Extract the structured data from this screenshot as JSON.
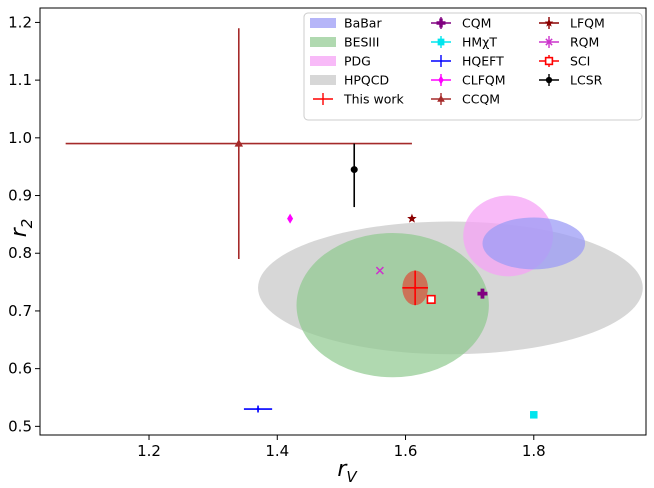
{
  "chart_data": {
    "type": "scatter",
    "xlabel": "r",
    "xlabel_sub": "V",
    "ylabel": "r",
    "ylabel_sub": "2",
    "xlim": [
      1.03,
      1.975
    ],
    "ylim": [
      0.485,
      1.225
    ],
    "xticks": [
      1.2,
      1.4,
      1.6,
      1.8
    ],
    "yticks": [
      0.5,
      0.6,
      0.7,
      0.8,
      0.9,
      1.0,
      1.1,
      1.2
    ],
    "xtick_labels": [
      "1.2",
      "1.4",
      "1.6",
      "1.8"
    ],
    "ytick_labels": [
      "0.5",
      "0.6",
      "0.7",
      "0.8",
      "0.9",
      "1.0",
      "1.1",
      "1.2"
    ],
    "legend_position": "top-right",
    "ellipses": [
      {
        "name": "HPQCD",
        "cx": 1.67,
        "cy": 0.74,
        "rx": 0.3,
        "ry": 0.115,
        "color": "#bdbdbd",
        "opacity": 0.6
      },
      {
        "name": "BESIII",
        "cx": 1.58,
        "cy": 0.71,
        "rx": 0.15,
        "ry": 0.125,
        "color": "#8fc98f",
        "opacity": 0.7
      },
      {
        "name": "PDG",
        "cx": 1.76,
        "cy": 0.83,
        "rx": 0.07,
        "ry": 0.07,
        "color": "#f6a3f6",
        "opacity": 0.75
      },
      {
        "name": "BaBar",
        "cx": 1.8,
        "cy": 0.817,
        "rx": 0.08,
        "ry": 0.045,
        "color": "#9c9cf6",
        "opacity": 0.75
      },
      {
        "name": "This work",
        "cx": 1.615,
        "cy": 0.74,
        "rx": 0.02,
        "ry": 0.03,
        "color": "#d9533e",
        "opacity": 0.75
      }
    ],
    "points": [
      {
        "name": "This work",
        "x": 1.615,
        "y": 0.74,
        "xerr": 0.02,
        "yerr": 0.03,
        "marker": "plus",
        "color": "#ff0000"
      },
      {
        "name": "CQM",
        "x": 1.72,
        "y": 0.73,
        "xerr": 0,
        "yerr": 0,
        "marker": "plus-thick",
        "color": "#800080"
      },
      {
        "name": "HMχT",
        "x": 1.8,
        "y": 0.52,
        "xerr": 0,
        "yerr": 0,
        "marker": "square",
        "color": "#00e5ee"
      },
      {
        "name": "HQEFT",
        "x": 1.37,
        "y": 0.53,
        "xerr": 0.022,
        "yerr": 0.006,
        "marker": "plus",
        "color": "#0000ff"
      },
      {
        "name": "CLFQM",
        "x": 1.42,
        "y": 0.86,
        "xerr": 0,
        "yerr": 0,
        "marker": "diamond",
        "color": "#ff00ff"
      },
      {
        "name": "CCQM",
        "x": 1.34,
        "y": 0.99,
        "xerr": 0.27,
        "yerr": 0.2,
        "marker": "triangle",
        "color": "#a52a2a"
      },
      {
        "name": "LFQM",
        "x": 1.61,
        "y": 0.86,
        "xerr": 0,
        "yerr": 0,
        "marker": "star",
        "color": "#8b0000"
      },
      {
        "name": "RQM",
        "x": 1.56,
        "y": 0.77,
        "xerr": 0,
        "yerr": 0,
        "marker": "x",
        "color": "#cc33cc"
      },
      {
        "name": "SCI",
        "x": 1.64,
        "y": 0.72,
        "xerr": 0,
        "yerr": 0,
        "marker": "open-square",
        "color": "#ff0000"
      },
      {
        "name": "LCSR",
        "x": 1.52,
        "y": 0.945,
        "xerr": 0,
        "yerr": 0.06,
        "yerr_low": 0.065,
        "yerr_high": 0.045,
        "marker": "circle",
        "color": "#000000"
      }
    ],
    "legend": [
      {
        "label": "BaBar",
        "kind": "patch",
        "color": "#9c9cf6",
        "opacity": 0.75
      },
      {
        "label": "BESIII",
        "kind": "patch",
        "color": "#8fc98f",
        "opacity": 0.7
      },
      {
        "label": "PDG",
        "kind": "patch",
        "color": "#f6a3f6",
        "opacity": 0.75
      },
      {
        "label": "HPQCD",
        "kind": "patch",
        "color": "#bdbdbd",
        "opacity": 0.6
      },
      {
        "label": "This work",
        "kind": "marker",
        "marker": "plus",
        "color": "#ff0000"
      },
      {
        "label": "CQM",
        "kind": "marker",
        "marker": "plus-thick",
        "color": "#800080"
      },
      {
        "label": "HMχT",
        "kind": "marker",
        "marker": "square",
        "color": "#00e5ee"
      },
      {
        "label": "HQEFT",
        "kind": "marker",
        "marker": "plus",
        "color": "#0000ff"
      },
      {
        "label": "CLFQM",
        "kind": "marker",
        "marker": "diamond",
        "color": "#ff00ff"
      },
      {
        "label": "CCQM",
        "kind": "marker",
        "marker": "triangle",
        "color": "#a52a2a"
      },
      {
        "label": "LFQM",
        "kind": "marker",
        "marker": "star",
        "color": "#8b0000"
      },
      {
        "label": "RQM",
        "kind": "marker",
        "marker": "x",
        "color": "#cc33cc"
      },
      {
        "label": "SCI",
        "kind": "marker",
        "marker": "open-square",
        "color": "#ff0000"
      },
      {
        "label": "LCSR",
        "kind": "marker",
        "marker": "circle",
        "color": "#000000"
      }
    ]
  }
}
